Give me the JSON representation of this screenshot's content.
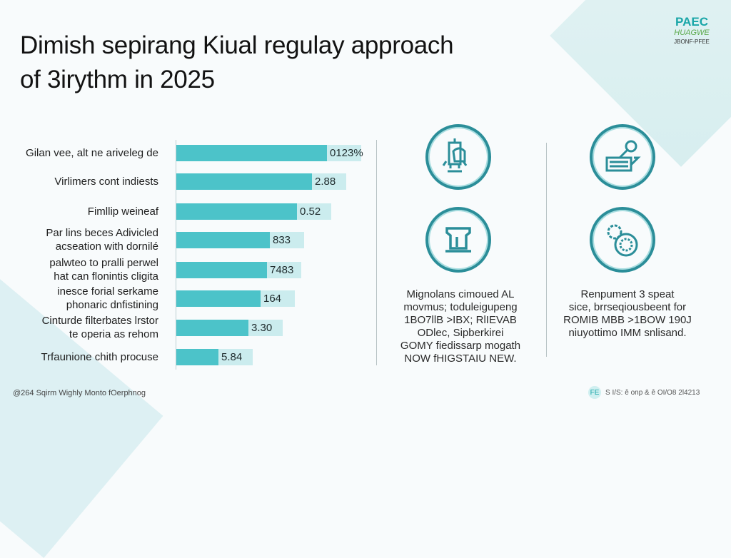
{
  "title": {
    "line1": "Dimish sepirang Kiual regulay approach",
    "line2": "of 3irythm in 2025"
  },
  "logo": {
    "line1": "PAEC",
    "line2": "HUAGWE",
    "line3": "JBONF-PFEE"
  },
  "colors": {
    "bar": "#4cc3c9",
    "bar_label_bg": "#cbecee",
    "icon_ring": "#2b8e99",
    "accent": "#1aa6a8"
  },
  "chart_data": {
    "type": "bar",
    "orientation": "horizontal",
    "categories": [
      [
        "Gilan vee, alt ne ariveleg de"
      ],
      [
        "Virlimers cont indiests"
      ],
      [
        "Fimllip weineaf"
      ],
      [
        "Par lins beces Adivicled",
        "acseation with dornilé"
      ],
      [
        "palwteo to pralli perwel",
        "hat can flonintis cligita"
      ],
      [
        "inesce forial serkame",
        "phonaric dnfistining"
      ],
      [
        "Cinturde filterbates lrstor",
        "te operia as rehom"
      ],
      [
        "Trfaunione chith procuse"
      ]
    ],
    "data_labels": [
      "0123%",
      "2.88",
      "0.52",
      "833",
      "7483",
      "164",
      "3.30",
      "5.84"
    ],
    "relative_levels": [
      1.0,
      0.9,
      0.8,
      0.62,
      0.6,
      0.56,
      0.48,
      0.28
    ],
    "grid": false
  },
  "icons": [
    {
      "name": "lab-apparatus-icon"
    },
    {
      "name": "keyboard-magnifier-icon"
    },
    {
      "name": "pedestal-icon"
    },
    {
      "name": "gear-cell-icon"
    }
  ],
  "captions": {
    "left": [
      "Mignolans cimoued AL",
      "movmus; toduleigupeng",
      "1BO7llB >IBX; RlIEVAB",
      "ODlec, Sipberkirei",
      "GOMY fiedissarp mogath",
      "NOW fHIGSTAIU NEW."
    ],
    "right": [
      "Renpument 3 speat",
      "sice, brrseqiousbeent for",
      "ROMIB MBB >1BOW 190J",
      "niuyottimo IMM snlisand."
    ]
  },
  "footer": {
    "left": "@264 Sqirm Wighly Monto fOerphnog",
    "badge": "FE",
    "right": "S I/S: ê onp & ê OI/O8 2l4213"
  }
}
